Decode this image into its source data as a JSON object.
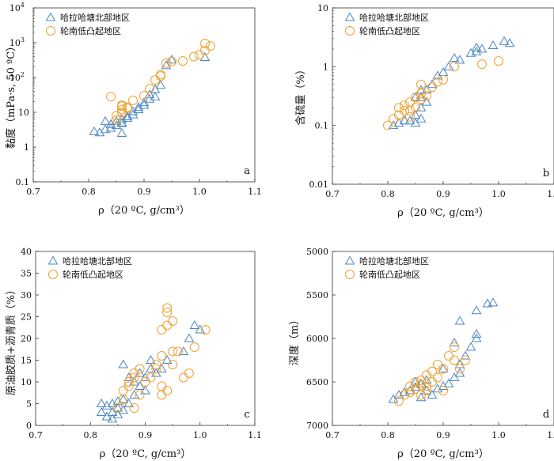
{
  "colors": {
    "triangle": "#4a86c5",
    "circle": "#f0a030",
    "axis": "#333333"
  },
  "chart_data": [
    {
      "type": "scatter",
      "panel_label": "a",
      "xlabel": "ρ（20 ºC, g/cm³）",
      "ylabel": "黏度（mPa·s, 50 ºC）",
      "yscale": "log",
      "xlim": [
        0.7,
        1.1
      ],
      "ylim": [
        0.1,
        10000
      ],
      "xticks": [
        "0.7",
        "0.8",
        "0.9",
        "1.0",
        "1.1"
      ],
      "yticks": [
        {
          "v": 0.1,
          "base": "0.1",
          "sup": ""
        },
        {
          "v": 1,
          "base": "1",
          "sup": ""
        },
        {
          "v": 10,
          "base": "10",
          "sup": ""
        },
        {
          "v": 100,
          "base": "10",
          "sup": "2"
        },
        {
          "v": 1000,
          "base": "10",
          "sup": "3"
        },
        {
          "v": 10000,
          "base": "10",
          "sup": "4"
        }
      ],
      "legend_position": "top-left",
      "series": [
        {
          "name": "哈拉哈塘北部地区",
          "marker": "triangle",
          "x": [
            0.81,
            0.82,
            0.83,
            0.84,
            0.84,
            0.85,
            0.85,
            0.86,
            0.86,
            0.86,
            0.87,
            0.87,
            0.88,
            0.88,
            0.89,
            0.89,
            0.9,
            0.9,
            0.91,
            0.91,
            0.92,
            0.92,
            0.93,
            0.94,
            0.95,
            1.01,
            0.83,
            0.86
          ],
          "y": [
            2.8,
            2.6,
            3.2,
            3.5,
            4.5,
            4.2,
            5.5,
            5.0,
            6.2,
            4.8,
            7.5,
            6.8,
            8.5,
            10.5,
            12,
            14,
            16,
            19,
            24,
            32,
            28,
            45,
            60,
            220,
            320,
            380,
            5.5,
            2.5
          ]
        },
        {
          "name": "轮南低凸起地区",
          "marker": "circle",
          "x": [
            0.84,
            0.85,
            0.86,
            0.86,
            0.87,
            0.86,
            0.88,
            0.9,
            0.91,
            0.92,
            0.93,
            0.93,
            0.94,
            0.95,
            0.97,
            0.99,
            1.0,
            1.01,
            1.01,
            1.02,
            0.86,
            0.87,
            0.85
          ],
          "y": [
            28,
            8,
            12,
            15,
            13,
            10,
            22,
            30,
            48,
            85,
            110,
            120,
            260,
            290,
            300,
            400,
            450,
            600,
            950,
            800,
            16,
            14,
            6
          ]
        }
      ]
    },
    {
      "type": "scatter",
      "panel_label": "b",
      "xlabel": "ρ（20 ºC, g/cm³）",
      "ylabel": "含硫量（%）",
      "yscale": "log",
      "xlim": [
        0.7,
        1.1
      ],
      "ylim": [
        0.01,
        10
      ],
      "xticks": [
        "0.7",
        "0.8",
        "0.9",
        "1.0",
        "1.1"
      ],
      "yticks": [
        {
          "v": 0.01,
          "base": "0.01",
          "sup": ""
        },
        {
          "v": 0.1,
          "base": "0.1",
          "sup": ""
        },
        {
          "v": 1,
          "base": "1",
          "sup": ""
        },
        {
          "v": 10,
          "base": "10",
          "sup": ""
        }
      ],
      "legend_position": "top-left",
      "series": [
        {
          "name": "哈拉哈塘北部地区",
          "marker": "triangle",
          "x": [
            0.81,
            0.82,
            0.83,
            0.84,
            0.85,
            0.85,
            0.86,
            0.86,
            0.86,
            0.87,
            0.87,
            0.88,
            0.89,
            0.9,
            0.91,
            0.92,
            0.93,
            0.95,
            0.96,
            0.96,
            0.97,
            0.99,
            1.01,
            1.02,
            0.86,
            0.85
          ],
          "y": [
            0.1,
            0.11,
            0.12,
            0.12,
            0.11,
            0.15,
            0.13,
            0.2,
            0.3,
            0.25,
            0.4,
            0.5,
            0.7,
            0.8,
            1.0,
            1.4,
            1.3,
            1.7,
            1.8,
            2.1,
            2.0,
            2.3,
            2.7,
            2.5,
            0.4,
            0.3
          ]
        },
        {
          "name": "轮南低凸起地区",
          "marker": "circle",
          "x": [
            0.8,
            0.81,
            0.82,
            0.82,
            0.83,
            0.84,
            0.84,
            0.85,
            0.85,
            0.86,
            0.86,
            0.86,
            0.87,
            0.88,
            0.89,
            0.9,
            0.92,
            0.97,
            1.0,
            0.83,
            0.84
          ],
          "y": [
            0.1,
            0.13,
            0.15,
            0.2,
            0.22,
            0.18,
            0.25,
            0.2,
            0.3,
            0.35,
            0.5,
            0.28,
            0.32,
            0.45,
            0.55,
            0.6,
            1.0,
            1.1,
            1.25,
            0.18,
            0.14
          ]
        }
      ]
    },
    {
      "type": "scatter",
      "panel_label": "c",
      "xlabel": "ρ（20 ºC, g/cm³）",
      "ylabel": "原油胶质+沥青质（%）",
      "yscale": "linear",
      "xlim": [
        0.7,
        1.1
      ],
      "ylim": [
        0,
        40
      ],
      "xticks": [
        "0.7",
        "0.8",
        "0.9",
        "1.0",
        "1.1"
      ],
      "yticks": [
        {
          "v": 0,
          "base": "0",
          "sup": ""
        },
        {
          "v": 5,
          "base": "5",
          "sup": ""
        },
        {
          "v": 10,
          "base": "10",
          "sup": ""
        },
        {
          "v": 15,
          "base": "15",
          "sup": ""
        },
        {
          "v": 20,
          "base": "20",
          "sup": ""
        },
        {
          "v": 25,
          "base": "25",
          "sup": ""
        },
        {
          "v": 30,
          "base": "30",
          "sup": ""
        },
        {
          "v": 35,
          "base": "35",
          "sup": ""
        },
        {
          "v": 40,
          "base": "40",
          "sup": ""
        }
      ],
      "legend_position": "top-left",
      "series": [
        {
          "name": "哈拉哈塘北部地区",
          "marker": "triangle",
          "x": [
            0.82,
            0.82,
            0.83,
            0.83,
            0.84,
            0.84,
            0.84,
            0.85,
            0.85,
            0.86,
            0.86,
            0.86,
            0.87,
            0.87,
            0.88,
            0.88,
            0.89,
            0.89,
            0.9,
            0.9,
            0.91,
            0.91,
            0.92,
            0.93,
            0.94,
            0.97,
            0.98,
            0.99,
            1.0,
            0.83,
            0.85
          ],
          "y": [
            3,
            5,
            2,
            4.5,
            3,
            5,
            1.5,
            4,
            2.5,
            3.5,
            14,
            6,
            5,
            11,
            10,
            7,
            9,
            12,
            8,
            11,
            15,
            13,
            12,
            13,
            15,
            17,
            20,
            23,
            22,
            2,
            5.5
          ]
        },
        {
          "name": "轮南低凸起地区",
          "marker": "circle",
          "x": [
            0.85,
            0.86,
            0.86,
            0.87,
            0.87,
            0.88,
            0.88,
            0.88,
            0.89,
            0.89,
            0.9,
            0.91,
            0.92,
            0.93,
            0.93,
            0.94,
            0.94,
            0.94,
            0.95,
            0.95,
            0.93,
            0.94,
            0.96,
            0.97,
            0.98,
            0.99,
            1.01,
            0.92,
            0.93,
            0.95
          ],
          "y": [
            4,
            6,
            8,
            10,
            9,
            11,
            12,
            4,
            7,
            13,
            10,
            11,
            14,
            16,
            22,
            23,
            26,
            27,
            24,
            17,
            7,
            8,
            17,
            11,
            12,
            18,
            22,
            13,
            9,
            14
          ]
        }
      ]
    },
    {
      "type": "scatter",
      "panel_label": "d",
      "xlabel": "ρ（20 ºC, g/cm³）",
      "ylabel": "深度（m）",
      "yscale": "linear",
      "yinverted": true,
      "xlim": [
        0.7,
        1.1
      ],
      "ylim": [
        5000,
        7000
      ],
      "xticks": [
        "0.7",
        "0.8",
        "0.9",
        "1.0",
        "1.1"
      ],
      "yticks": [
        {
          "v": 5000,
          "base": "5000",
          "sup": ""
        },
        {
          "v": 5500,
          "base": "5500",
          "sup": ""
        },
        {
          "v": 6000,
          "base": "6000",
          "sup": ""
        },
        {
          "v": 6500,
          "base": "6500",
          "sup": ""
        },
        {
          "v": 7000,
          "base": "7000",
          "sup": ""
        }
      ],
      "legend_position": "top-left",
      "series": [
        {
          "name": "哈拉哈塘北部地区",
          "marker": "triangle",
          "x": [
            0.81,
            0.82,
            0.83,
            0.84,
            0.85,
            0.86,
            0.86,
            0.87,
            0.88,
            0.89,
            0.9,
            0.91,
            0.92,
            0.93,
            0.93,
            0.94,
            0.95,
            0.96,
            0.96,
            0.96,
            0.98,
            0.99,
            0.93,
            0.92,
            0.9,
            0.87,
            0.85
          ],
          "y": [
            6700,
            6650,
            6620,
            6600,
            6560,
            6520,
            6680,
            6600,
            6650,
            6580,
            6550,
            6520,
            6450,
            6400,
            6300,
            6200,
            6100,
            6000,
            5950,
            5680,
            5600,
            5590,
            5800,
            6050,
            6350,
            6480,
            6500
          ]
        },
        {
          "name": "轮南低凸起地区",
          "marker": "circle",
          "x": [
            0.82,
            0.83,
            0.84,
            0.85,
            0.85,
            0.86,
            0.86,
            0.87,
            0.87,
            0.88,
            0.88,
            0.89,
            0.89,
            0.9,
            0.9,
            0.91,
            0.92,
            0.92,
            0.93,
            0.94,
            0.86,
            0.87,
            0.84
          ],
          "y": [
            6720,
            6650,
            6620,
            6580,
            6500,
            6540,
            6480,
            6420,
            6550,
            6380,
            6500,
            6300,
            6450,
            6350,
            6600,
            6200,
            6100,
            6250,
            6350,
            6250,
            6650,
            6600,
            6550
          ]
        }
      ]
    }
  ]
}
